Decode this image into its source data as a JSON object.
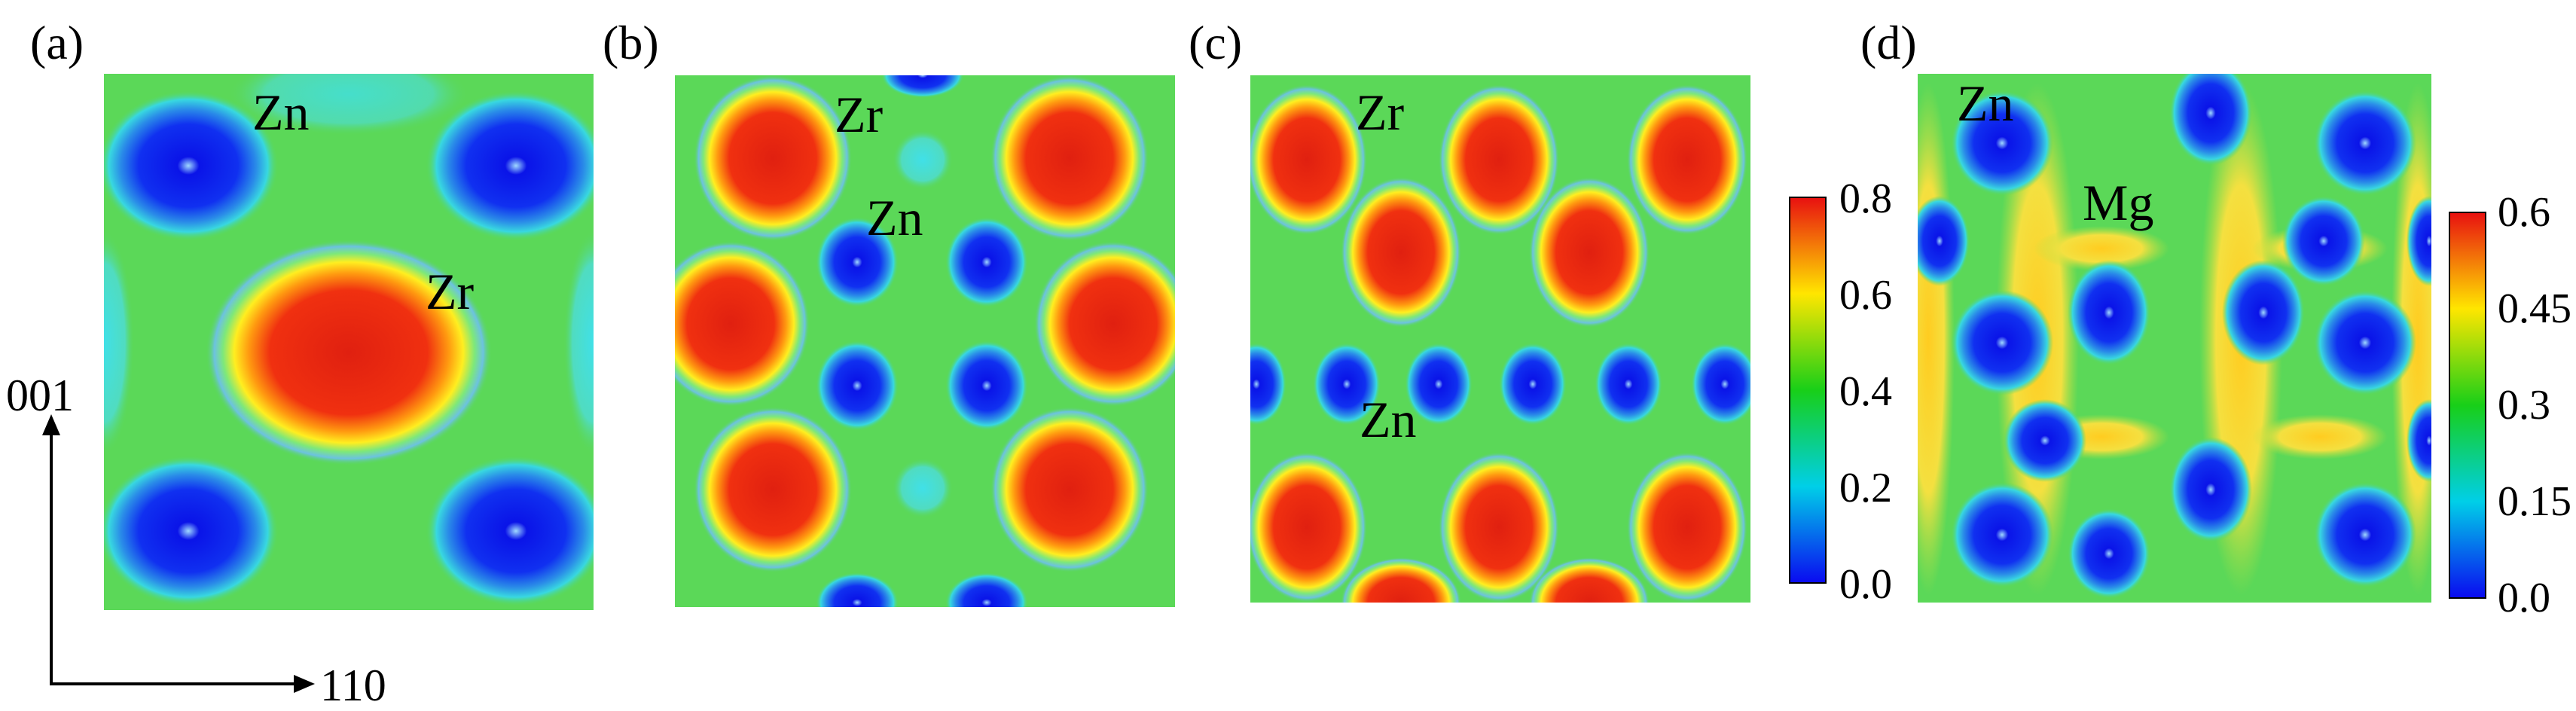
{
  "panels": [
    {
      "id": "a",
      "label": "(a)",
      "atoms": [
        "Zn",
        "Zr"
      ]
    },
    {
      "id": "b",
      "label": "(b)",
      "atoms": [
        "Zr",
        "Zn"
      ]
    },
    {
      "id": "c",
      "label": "(c)",
      "atoms": [
        "Zr",
        "Zn"
      ]
    },
    {
      "id": "d",
      "label": "(d)",
      "atoms": [
        "Zn",
        "Mg"
      ]
    }
  ],
  "colorbars": [
    {
      "for": "c",
      "ticks": [
        "0.8",
        "0.6",
        "0.4",
        "0.2",
        "0.0"
      ],
      "colors": [
        "#e81010",
        "#ffe600",
        "#18cf18",
        "#00cfe8",
        "#0a0af0"
      ]
    },
    {
      "for": "d",
      "ticks": [
        "0.6",
        "0.45",
        "0.3",
        "0.15",
        "0.0"
      ],
      "colors": [
        "#e81010",
        "#ffe600",
        "#18cf18",
        "#00cfe8",
        "#0a0af0"
      ]
    }
  ],
  "axes": {
    "vertical": "001",
    "horizontal": "110"
  },
  "colors": {
    "background_green": "#5bd858",
    "high": "#e81010",
    "low": "#0a0af0"
  }
}
